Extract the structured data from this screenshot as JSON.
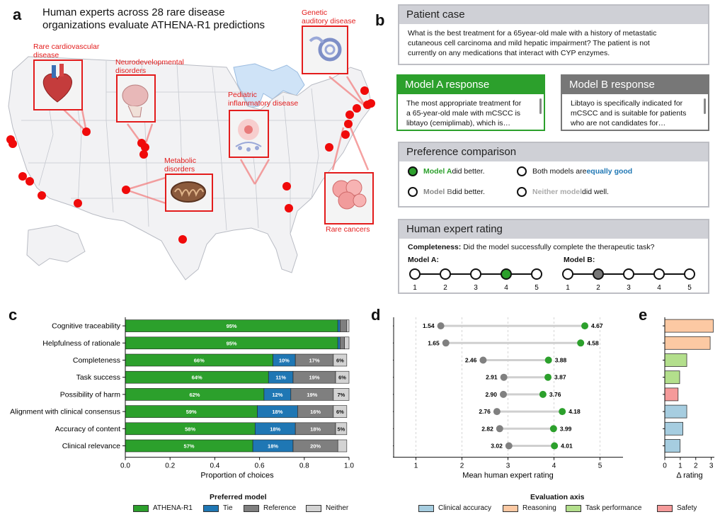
{
  "letters": {
    "a": "a",
    "b": "b",
    "c": "c",
    "d": "d",
    "e": "e"
  },
  "panel_a": {
    "title_line1": "Human experts across 28 rare disease",
    "title_line2": "organizations evaluate ATHENA-R1 predictions",
    "labels": {
      "cardio1": "Rare cardiovascular",
      "cardio2": "disease",
      "neuro1": "Neurodevelopmental",
      "neuro2": "disorders",
      "genetic1": "Genetic",
      "genetic2": "auditory disease",
      "pediatric1": "Pediatric",
      "pediatric2": "inflammatory disease",
      "metabolic1": "Metabolic",
      "metabolic2": "disorders",
      "cancer": "Rare cancers"
    },
    "marker_color": "#f00a0a"
  },
  "panel_b": {
    "patient_title": "Patient case",
    "patient_text1": "What is the best treatment for a 65year-old male with a history of metastatic",
    "patient_text2": "cutaneous cell carcinoma and mild hepatic impairment? The patient is not",
    "patient_text3": "currently on any medications that interact with CYP enzymes.",
    "model_a_title": "Model A response",
    "model_a_text1": "The most appropriate treatment for",
    "model_a_text2": "a 65-year-old male with mCSCC is",
    "model_a_text3": "libtayo (cemiplimab), which is…",
    "model_b_title": "Model B response",
    "model_b_text1": "Libtayo is specifically indicated for",
    "model_b_text2": "mCSCC and is suitable for patients",
    "model_b_text3": "who are not candidates for…",
    "pref_title": "Preference comparison",
    "opt1_bold": "Model A",
    "opt1_rest": " did better.",
    "opt2_pre": "Both models are ",
    "opt2_bold": "equally good",
    "opt3_bold": "Model B",
    "opt3_rest": " did better.",
    "opt4_bold": "Neither model",
    "opt4_rest": " did well.",
    "rating_title": "Human expert rating",
    "rating_q_bold": "Completeness:",
    "rating_q_rest": " Did the model successfully complete the therapeutic task?",
    "model_a_label": "Model A:",
    "model_b_label": "Model B:",
    "scale": [
      "1",
      "2",
      "3",
      "4",
      "5"
    ],
    "model_a_selected": 4,
    "model_b_selected": 2,
    "green": "#2ca02c",
    "gray": "#777777",
    "blue": "#1f77b4"
  },
  "chart_data": [
    {
      "type": "bar",
      "panel": "c",
      "orientation": "horizontal-stacked",
      "categories": [
        "Cognitive traceability",
        "Helpfulness of rationale",
        "Completeness",
        "Task success",
        "Possibility of harm",
        "Alignment with clinical consensus",
        "Accuracy of content",
        "Clinical relevance"
      ],
      "series": [
        {
          "name": "ATHENA-R1",
          "color": "#2ca02c",
          "values": [
            0.95,
            0.95,
            0.66,
            0.64,
            0.62,
            0.59,
            0.58,
            0.57
          ],
          "labels": [
            "95%",
            "95%",
            "66%",
            "64%",
            "62%",
            "59%",
            "58%",
            "57%"
          ]
        },
        {
          "name": "Tie",
          "color": "#1f77b4",
          "values": [
            0.01,
            0.01,
            0.1,
            0.11,
            0.12,
            0.18,
            0.18,
            0.18
          ],
          "labels": [
            "",
            "",
            "10%",
            "11%",
            "12%",
            "18%",
            "18%",
            "18%"
          ]
        },
        {
          "name": "Reference",
          "color": "#7f7f7f",
          "values": [
            0.03,
            0.02,
            0.17,
            0.19,
            0.19,
            0.16,
            0.18,
            0.2
          ],
          "labels": [
            "",
            "",
            "17%",
            "19%",
            "19%",
            "16%",
            "18%",
            "20%"
          ]
        },
        {
          "name": "Neither",
          "color": "#d3d3d3",
          "values": [
            0.01,
            0.02,
            0.06,
            0.06,
            0.07,
            0.06,
            0.05,
            0.04
          ],
          "labels": [
            "",
            "",
            "6%",
            "6%",
            "7%",
            "6%",
            "5%",
            ""
          ]
        }
      ],
      "xlabel": "Proportion of choices",
      "xlim": [
        0,
        1
      ],
      "xticks": [
        "0.0",
        "0.2",
        "0.4",
        "0.6",
        "0.8",
        "1.0"
      ],
      "xtick_values": [
        0,
        0.2,
        0.4,
        0.6,
        0.8,
        1.0
      ],
      "legend_title": "Preferred model"
    },
    {
      "type": "scatter",
      "panel": "d",
      "subtype": "dumbbell",
      "categories": [
        "Cognitive traceability",
        "Helpfulness of rationale",
        "Completeness",
        "Task success",
        "Possibility of harm",
        "Alignment with clinical consensus",
        "Accuracy of content",
        "Clinical relevance"
      ],
      "reference": [
        1.54,
        1.65,
        2.46,
        2.91,
        2.9,
        2.76,
        2.82,
        3.02
      ],
      "athena": [
        4.67,
        4.58,
        3.88,
        3.87,
        3.76,
        4.18,
        3.99,
        4.01
      ],
      "reference_labels": [
        "1.54",
        "1.65",
        "2.46",
        "2.91",
        "2.90",
        "2.76",
        "2.82",
        "3.02"
      ],
      "athena_labels": [
        "4.67",
        "4.58",
        "3.88",
        "3.87",
        "3.76",
        "4.18",
        "3.99",
        "4.01"
      ],
      "xlabel": "Mean human expert rating",
      "xlim": [
        0.5,
        5.5
      ],
      "xticks": [
        "1",
        "2",
        "3",
        "4",
        "5"
      ],
      "xtick_values": [
        1,
        2,
        3,
        4,
        5
      ],
      "grid": true,
      "green": "#2ca02c",
      "gray": "#808080"
    },
    {
      "type": "bar",
      "panel": "e",
      "orientation": "horizontal",
      "values": [
        3.13,
        2.93,
        1.42,
        0.96,
        0.86,
        1.42,
        1.17,
        0.99
      ],
      "axis_category": [
        "Reasoning",
        "Reasoning",
        "Task performance",
        "Task performance",
        "Safety",
        "Clinical accuracy",
        "Clinical accuracy",
        "Clinical accuracy"
      ],
      "xlabel": "Δ rating",
      "xlim": [
        0,
        3.2
      ],
      "xticks": [
        "0",
        "1",
        "2",
        "3"
      ],
      "xtick_values": [
        0,
        1,
        2,
        3
      ],
      "legend_title": "Evaluation axis",
      "legend": [
        {
          "name": "Clinical accuracy",
          "color": "#a6cde0"
        },
        {
          "name": "Reasoning",
          "color": "#fcc9a3"
        },
        {
          "name": "Task performance",
          "color": "#b3df8c"
        },
        {
          "name": "Safety",
          "color": "#f59a9a"
        }
      ],
      "colors": {
        "Clinical accuracy": "#a6cde0",
        "Reasoning": "#fcc9a3",
        "Task performance": "#b3df8c",
        "Safety": "#f59a9a"
      }
    }
  ]
}
